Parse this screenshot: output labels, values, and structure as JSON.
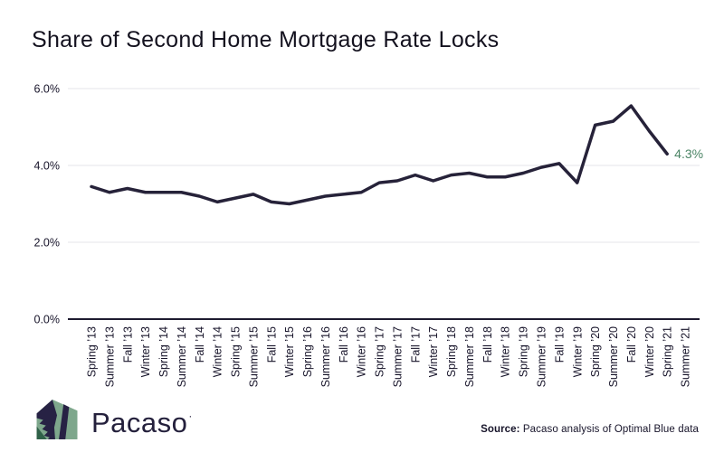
{
  "chart_data": {
    "type": "line",
    "title": "Share of Second Home Mortgage Rate Locks",
    "categories": [
      "Spring ’13",
      "Summer ’13",
      "Fall ’13",
      "Winter ’13",
      "Spring ’14",
      "Summer ’14",
      "Fall ’14",
      "Winter ’14",
      "Spring ’15",
      "Summer ’15",
      "Fall ’15",
      "Winter ’15",
      "Spring ’16",
      "Summer ’16",
      "Fall ’16",
      "Winter ’16",
      "Spring ’17",
      "Summer ’17",
      "Fall ’17",
      "Winter ’17",
      "Spring ’18",
      "Summer ’18",
      "Fall ’18",
      "Winter ’18",
      "Spring ’19",
      "Summer ’19",
      "Fall ’19",
      "Winter ’19",
      "Spring ’20",
      "Summer ’20",
      "Fall ’20",
      "Winter ’20",
      "Spring ’21",
      "Summer ’21"
    ],
    "values": [
      3.45,
      3.3,
      3.4,
      3.3,
      3.3,
      3.3,
      3.2,
      3.05,
      3.15,
      3.25,
      3.05,
      3.0,
      3.1,
      3.2,
      3.25,
      3.3,
      3.55,
      3.6,
      3.75,
      3.6,
      3.75,
      3.8,
      3.7,
      3.7,
      3.8,
      3.95,
      4.05,
      3.55,
      5.05,
      5.15,
      5.55,
      4.9,
      4.3,
      null
    ],
    "xlabel": "",
    "ylabel": "",
    "ylim": [
      0,
      6.0
    ],
    "grid": true,
    "legend": false,
    "y_axis": {
      "ticks": [
        {
          "value": 6,
          "label": "6.0%"
        },
        {
          "value": 4,
          "label": "4.0%"
        },
        {
          "value": 2,
          "label": "2.0%"
        },
        {
          "value": 0,
          "label": "0.0%"
        }
      ]
    },
    "annotation": {
      "text": "4.3%"
    },
    "colors": {
      "line": "#262239",
      "grid": "#e4e4e8",
      "axis": "#1e1b30",
      "tick_text": "#17142a",
      "annotation": "#4c8566"
    }
  },
  "branding": {
    "logo_text": "Pacaso",
    "logo_mark": "·",
    "logo_colors": {
      "sage": "#7ea78c",
      "navy": "#272244",
      "dark_green": "#2f6148"
    }
  },
  "footer": {
    "source_label": "Source:",
    "source_text": " Pacaso analysis of Optimal Blue data"
  }
}
